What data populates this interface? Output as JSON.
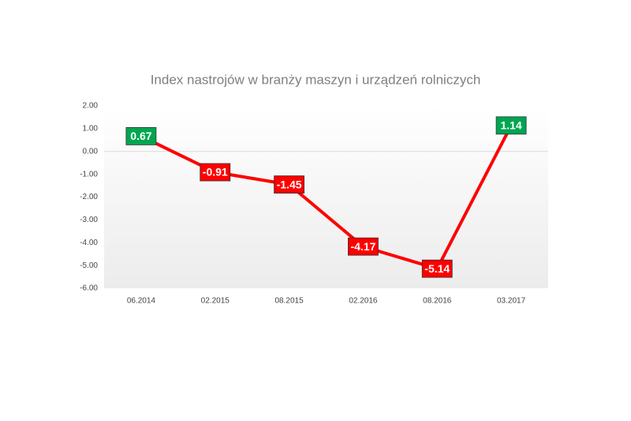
{
  "chart_data": {
    "type": "line",
    "title": "Index nastrojów w branży maszyn i urządzeń rolniczych",
    "categories": [
      "06.2014",
      "02.2015",
      "08.2015",
      "02.2016",
      "08.2016",
      "03.2017"
    ],
    "series": [
      {
        "color": "#ff0000",
        "values": [
          0.67,
          -0.91,
          -1.45,
          -4.17,
          -5.14,
          1.14
        ]
      }
    ],
    "positive_label_color": "#00a650",
    "negative_label_color": "#ff0000",
    "ylim": [
      -6,
      2
    ],
    "yticks": [
      {
        "value": 2,
        "label": "2.00"
      },
      {
        "value": 1,
        "label": "1.00"
      },
      {
        "value": 0,
        "label": "0.00"
      },
      {
        "value": -1,
        "label": "-1.00"
      },
      {
        "value": -2,
        "label": "-2.00"
      },
      {
        "value": -3,
        "label": "-3.00"
      },
      {
        "value": -4,
        "label": "-4.00"
      },
      {
        "value": -5,
        "label": "-5.00"
      },
      {
        "value": -6,
        "label": "-6.00"
      }
    ],
    "grid": false
  }
}
